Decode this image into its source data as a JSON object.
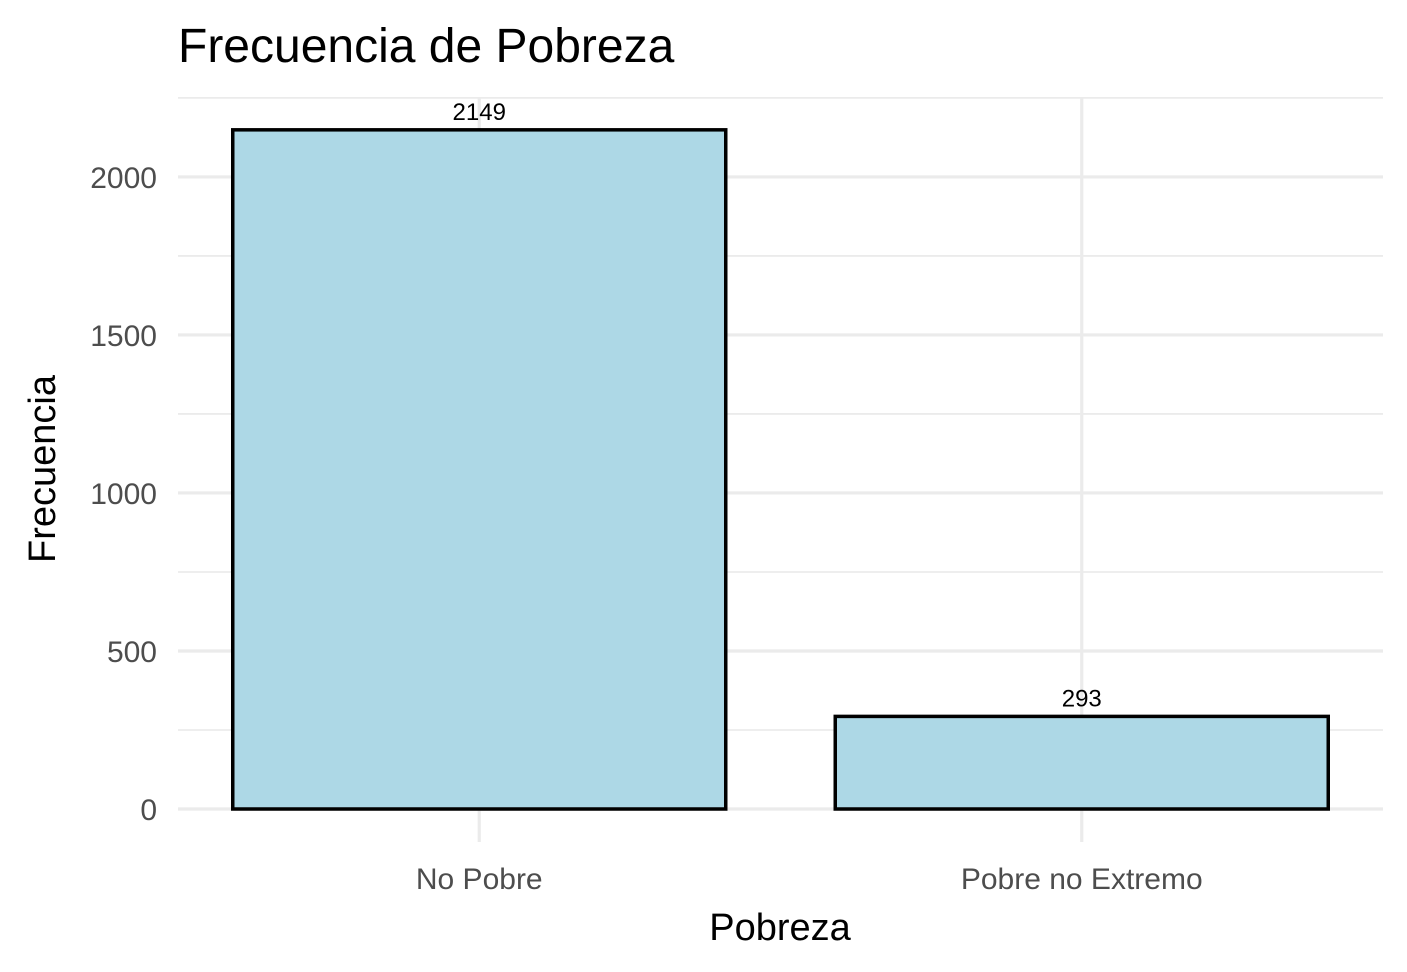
{
  "chart_data": {
    "type": "bar",
    "title": "Frecuencia de Pobreza",
    "xlabel": "Pobreza",
    "ylabel": "Frecuencia",
    "categories": [
      "No Pobre",
      "Pobre no Extremo"
    ],
    "values": [
      2149,
      293
    ],
    "data_labels": [
      "2149",
      "293"
    ],
    "yticks": [
      0,
      500,
      1000,
      1500,
      2000
    ],
    "ytick_labels": [
      "0",
      "500",
      "1000",
      "1500",
      "2000"
    ],
    "ylim": [
      0,
      2250
    ],
    "grid": true,
    "legend": "none",
    "colors": {
      "bar_fill": "#add8e6",
      "bar_outline": "#000000",
      "grid": "#ebebeb",
      "tick_text": "#4d4d4d",
      "text": "#000000"
    }
  }
}
